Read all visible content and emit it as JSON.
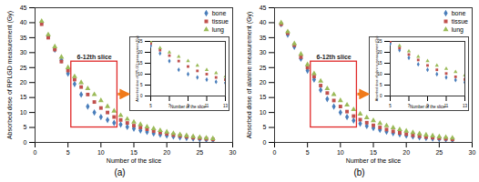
{
  "chart_data": [
    {
      "type": "scatter",
      "caption": "(a)",
      "x_label": "Number of the slice",
      "y_label": "Absorbed dose of RPLGD measurement (Gy)",
      "x": [
        1,
        2,
        3,
        4,
        5,
        6,
        7,
        8,
        9,
        10,
        11,
        12,
        13,
        14,
        15,
        16,
        17,
        18,
        19,
        20,
        21,
        22,
        23,
        24,
        25,
        26,
        27
      ],
      "xlim": [
        0,
        30
      ],
      "xticks": [
        0,
        5,
        10,
        15,
        20,
        25,
        30
      ],
      "ylim": [
        0,
        45
      ],
      "yticks": [
        0,
        5,
        10,
        15,
        20,
        25,
        30,
        35,
        40,
        45
      ],
      "legend": "upper right",
      "series": [
        {
          "name": "bone",
          "color": "#4a7ebb",
          "marker": "diamond",
          "values": [
            40,
            35.5,
            31,
            27.5,
            23,
            19.5,
            16,
            12,
            10,
            8.5,
            7.5,
            6.5,
            6,
            5.2,
            4.6,
            4,
            3.5,
            3,
            2.6,
            2.3,
            2,
            1.7,
            1.5,
            1.3,
            1.1,
            0.9,
            0.8
          ]
        },
        {
          "name": "tissue",
          "color": "#c0504d",
          "marker": "square",
          "values": [
            39.5,
            35,
            31,
            27,
            24,
            21,
            18.5,
            16,
            13.5,
            11.5,
            10,
            8.5,
            7.5,
            6.5,
            5.6,
            5,
            4.4,
            3.8,
            3.3,
            2.9,
            2.5,
            2.2,
            1.9,
            1.6,
            1.4,
            1.2,
            1
          ]
        },
        {
          "name": "lung",
          "color": "#9bbb59",
          "marker": "triangle",
          "values": [
            40.5,
            36,
            32,
            28.5,
            25,
            22,
            20,
            18,
            16,
            14,
            12,
            10.5,
            9,
            7.8,
            6.8,
            6,
            5.2,
            4.6,
            4,
            3.5,
            3,
            2.6,
            2.3,
            2,
            1.7,
            1.5,
            1.3
          ]
        }
      ],
      "highlight": {
        "label": "6-12th slice",
        "x": [
          5.5,
          12.5
        ],
        "y": [
          5,
          27
        ]
      },
      "inset": {
        "xlim": [
          5,
          13
        ],
        "xticks": [
          5,
          7,
          9,
          11,
          13
        ],
        "ylim": [
          0,
          25
        ],
        "yticks": [
          0,
          5,
          10,
          15,
          20,
          25
        ]
      }
    },
    {
      "type": "scatter",
      "caption": "(b)",
      "x_label": "Number of the slice",
      "y_label": "Absorbed dose of alanine measurement (Gy)",
      "x": [
        1,
        2,
        3,
        4,
        5,
        6,
        7,
        8,
        9,
        10,
        11,
        12,
        13,
        14,
        15,
        16,
        17,
        18,
        19,
        20,
        21,
        22,
        23,
        24,
        25,
        26,
        27
      ],
      "xlim": [
        0,
        30
      ],
      "xticks": [
        0,
        5,
        10,
        15,
        20,
        25,
        30
      ],
      "ylim": [
        0,
        45
      ],
      "yticks": [
        0,
        5,
        10,
        15,
        20,
        25,
        30,
        35,
        40,
        45
      ],
      "legend": "upper right",
      "series": [
        {
          "name": "bone",
          "color": "#4a7ebb",
          "marker": "diamond",
          "values": [
            39.5,
            36,
            32,
            28,
            24,
            21,
            17.5,
            14.5,
            12,
            10,
            8.5,
            7.3,
            6.3,
            5.5,
            4.8,
            4.2,
            3.6,
            3.1,
            2.7,
            2.3,
            2,
            1.7,
            1.5,
            1.3,
            1.1,
            1,
            0.8
          ]
        },
        {
          "name": "tissue",
          "color": "#c0504d",
          "marker": "square",
          "values": [
            39.5,
            36.5,
            32.5,
            28.5,
            25,
            22,
            19,
            16.5,
            14,
            12,
            10.3,
            8.8,
            7.6,
            6.6,
            5.7,
            5,
            4.3,
            3.7,
            3.2,
            2.8,
            2.4,
            2.1,
            1.8,
            1.6,
            1.4,
            1.2,
            1
          ]
        },
        {
          "name": "lung",
          "color": "#9bbb59",
          "marker": "triangle",
          "values": [
            40,
            37,
            33,
            29.5,
            26,
            23,
            20.5,
            18,
            16,
            14,
            12.5,
            11,
            9.5,
            8.3,
            7.3,
            6.4,
            5.6,
            4.9,
            4.3,
            3.8,
            3.3,
            2.9,
            2.5,
            2.2,
            1.9,
            1.7,
            1.5
          ]
        }
      ],
      "highlight": {
        "label": "6-12th slice",
        "x": [
          5.5,
          12.5
        ],
        "y": [
          5,
          27
        ]
      },
      "inset": {
        "xlim": [
          5,
          13
        ],
        "xticks": [
          5,
          7,
          9,
          11,
          13
        ],
        "ylim": [
          0,
          25
        ],
        "yticks": [
          0,
          5,
          10,
          15,
          20,
          25
        ]
      }
    }
  ]
}
